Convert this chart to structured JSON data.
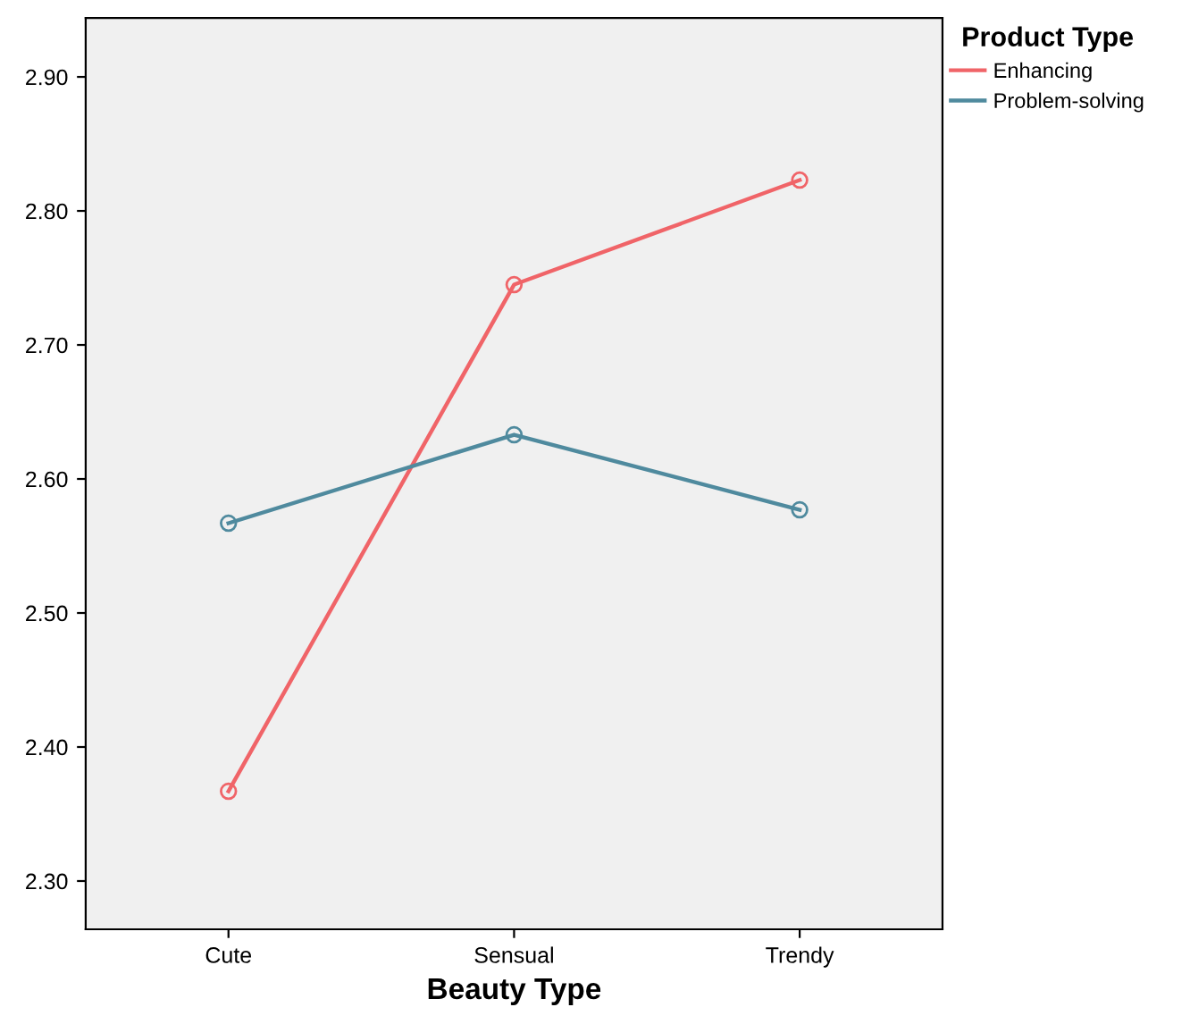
{
  "chart_data": {
    "type": "line",
    "xlabel": "Beauty Type",
    "legend_title": "Product Type",
    "categories": [
      "Cute",
      "Sensual",
      "Trendy"
    ],
    "series": [
      {
        "name": "Enhancing",
        "color": "#f06468",
        "values": [
          2.367,
          2.745,
          2.823
        ]
      },
      {
        "name": "Problem-solving",
        "color": "#4f8a9e",
        "values": [
          2.567,
          2.633,
          2.577
        ]
      }
    ],
    "ylim": [
      2.264,
      2.944
    ],
    "yticks": [
      {
        "value": 2.3,
        "label": "2.30"
      },
      {
        "value": 2.4,
        "label": "2.40"
      },
      {
        "value": 2.5,
        "label": "2.50"
      },
      {
        "value": 2.6,
        "label": "2.60"
      },
      {
        "value": 2.7,
        "label": "2.70"
      },
      {
        "value": 2.8,
        "label": "2.80"
      },
      {
        "value": 2.9,
        "label": "2.90"
      }
    ],
    "legend": "top right",
    "marker": "circle",
    "line_style": "solid"
  }
}
